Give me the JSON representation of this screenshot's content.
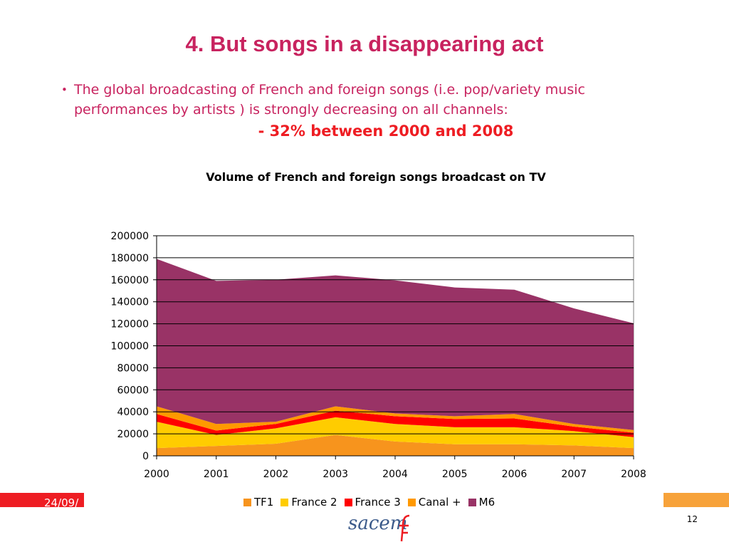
{
  "slide": {
    "title": "4. But songs in a disappearing act",
    "bullet_text": "The global broadcasting of French and foreign songs (i.e. pop/variety music performances by artists ) is strongly decreasing  on all channels:",
    "bullet_symbol": "•",
    "highlight": "- 32% between 2000 and 2008"
  },
  "footer": {
    "date": "24/09/",
    "page_number": "12",
    "logo_text": "sacem"
  },
  "colors": {
    "title": "#c8235f",
    "highlight": "#ee1d23",
    "footer_left": "#ee1d23",
    "footer_right": "#f7a23a",
    "logo": "#3b5a8a"
  },
  "chart_data": {
    "type": "area",
    "stacked": true,
    "title": "Volume of French and foreign songs broadcast on TV",
    "x": [
      "2000",
      "2001",
      "2002",
      "2003",
      "2004",
      "2005",
      "2006",
      "2007",
      "2008"
    ],
    "ylim": [
      0,
      200000
    ],
    "yticks": [
      "0",
      "20000",
      "40000",
      "60000",
      "80000",
      "100000",
      "120000",
      "140000",
      "160000",
      "180000",
      "200000"
    ],
    "grid": true,
    "legend_position": "bottom",
    "series": [
      {
        "name": "TF1",
        "color": "#f7941d",
        "values": [
          7000,
          9000,
          11000,
          19000,
          13000,
          10500,
          10500,
          9500,
          7000
        ]
      },
      {
        "name": "France 2",
        "color": "#ffcc00",
        "values": [
          24000,
          10000,
          14000,
          16000,
          16000,
          15500,
          15500,
          13000,
          10000
        ]
      },
      {
        "name": "France 3",
        "color": "#ff0000",
        "values": [
          7000,
          4000,
          4000,
          6000,
          7000,
          7500,
          8000,
          4000,
          4000
        ]
      },
      {
        "name": "Canal +",
        "color": "#ff9900",
        "values": [
          7000,
          6000,
          2000,
          4000,
          2500,
          2500,
          4000,
          2500,
          2500
        ]
      },
      {
        "name": "M6",
        "color": "#993366",
        "values": [
          134000,
          130000,
          129000,
          119000,
          121000,
          117000,
          113000,
          105000,
          97000
        ]
      }
    ]
  }
}
